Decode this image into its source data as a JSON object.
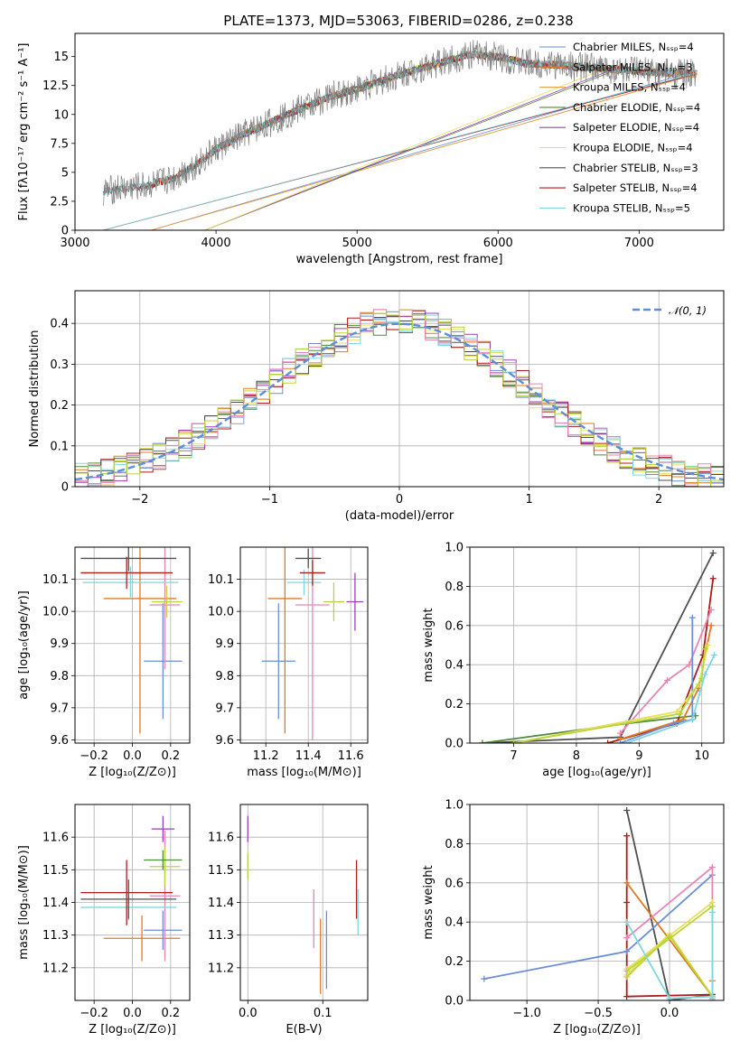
{
  "figure_title": "PLATE=1373, MJD=53063, FIBERID=0286, z=0.238",
  "colors": {
    "Chabrier MILES": "#6a8ed8",
    "Salpeter MILES": "#e07a20",
    "Kroupa MILES": "#e6a24a",
    "Chabrier ELODIE": "#4f8a3a",
    "Salpeter ELODIE": "#9b3fb5",
    "Kroupa ELODIE": "#e8e05a",
    "Chabrier STELIB": "#505050",
    "Salpeter STELIB": "#b01a1a",
    "Kroupa STELIB": "#7fd6e0",
    "extra_pink": "#e884b8",
    "extra_lime": "#b8d63a"
  },
  "chart_data": [
    {
      "type": "line",
      "title": "PLATE=1373, MJD=53063, FIBERID=0286, z=0.238",
      "xlabel": "wavelength [Angstrom, rest frame]",
      "ylabel": "Flux [fλ10⁻¹⁷ erg cm⁻² s⁻¹ A⁻¹]",
      "xlim": [
        3000,
        7600
      ],
      "ylim": [
        0,
        17
      ],
      "xticks": [
        3000,
        4000,
        5000,
        6000,
        7000
      ],
      "yticks": [
        0.0,
        2.5,
        5.0,
        7.5,
        10.0,
        12.5,
        15.0
      ],
      "legend_position": "upper-right",
      "series": [
        {
          "name": "Chabrier MILES, Nₛₛₚ=4"
        },
        {
          "name": "Salpeter MILES, Nₛₛₚ=3"
        },
        {
          "name": "Kroupa MILES, Nₛₛₚ=4"
        },
        {
          "name": "Chabrier ELODIE, Nₛₛₚ=4"
        },
        {
          "name": "Salpeter ELODIE, Nₛₛₚ=4"
        },
        {
          "name": "Kroupa ELODIE, Nₛₛₚ=4"
        },
        {
          "name": "Chabrier STELIB, Nₛₛₚ=3"
        },
        {
          "name": "Salpeter STELIB, Nₛₛₚ=4"
        },
        {
          "name": "Kroupa STELIB, Nₛₛₚ=5"
        }
      ],
      "continuum": {
        "x": [
          3200,
          3300,
          3500,
          3700,
          3900,
          4000,
          4200,
          4400,
          4600,
          4800,
          5000,
          5200,
          5400,
          5600,
          5800,
          6000,
          6200,
          6400,
          6600,
          6800,
          7000,
          7200,
          7400
        ],
        "y": [
          3.3,
          3.6,
          3.8,
          4.5,
          6.0,
          7.0,
          8.3,
          9.4,
          10.5,
          11.5,
          12.2,
          13.0,
          13.8,
          14.5,
          15.2,
          15.0,
          14.4,
          14.3,
          14.1,
          13.9,
          13.7,
          13.6,
          13.5
        ]
      }
    },
    {
      "type": "line",
      "xlabel": "(data-model)/error",
      "ylabel": "Normed distribution",
      "xlim": [
        -2.5,
        2.5
      ],
      "ylim": [
        0,
        0.48
      ],
      "xticks": [
        -2,
        -1,
        0,
        1,
        2
      ],
      "yticks": [
        0.0,
        0.1,
        0.2,
        0.3,
        0.4
      ],
      "legend": [
        {
          "label": "𝒩(0, 1)",
          "style": "dashed"
        }
      ],
      "legend_position": "upper-right",
      "grid": true,
      "bin_width": 0.1,
      "histogram_profile": [
        0.02,
        0.03,
        0.05,
        0.07,
        0.1,
        0.14,
        0.18,
        0.24,
        0.29,
        0.33,
        0.37,
        0.4,
        0.41,
        0.4,
        0.37,
        0.33,
        0.28,
        0.23,
        0.18,
        0.13,
        0.09,
        0.06,
        0.04,
        0.03,
        0.02
      ]
    },
    {
      "type": "scatter",
      "xlabel": "Z [log₁₀(Z/Z⊙)]",
      "ylabel": "age  [log₁₀(age/yr)]",
      "xlim": [
        -0.3,
        0.3
      ],
      "ylim": [
        9.59,
        10.2
      ],
      "xticks": [
        "-0.2",
        "0.0",
        "0.2"
      ],
      "yticks": [
        "9.6",
        "9.7",
        "9.8",
        "9.9",
        "10.0",
        "10.1"
      ],
      "points": [
        {
          "x": 0.16,
          "y": 9.845,
          "xerr": 0.1,
          "yerr": 0.18,
          "c": "Chabrier MILES"
        },
        {
          "x": 0.04,
          "y": 10.04,
          "xerr": 0.19,
          "yerr": 0.42,
          "c": "Salpeter MILES"
        },
        {
          "x": 0.17,
          "y": 10.02,
          "xerr": 0.08,
          "yerr": 0.2,
          "c": "extra_pink"
        },
        {
          "x": 0.18,
          "y": 10.03,
          "xerr": 0.08,
          "yerr": 0.05,
          "c": "extra_lime"
        },
        {
          "x": -0.01,
          "y": 10.09,
          "xerr": 0.25,
          "yerr": 0.05,
          "c": "Kroupa STELIB"
        },
        {
          "x": -0.03,
          "y": 10.12,
          "xerr": 0.24,
          "yerr": 0.05,
          "c": "Salpeter STELIB"
        },
        {
          "x": -0.02,
          "y": 10.165,
          "xerr": 0.25,
          "yerr": 0.04,
          "c": "Chabrier STELIB"
        }
      ]
    },
    {
      "type": "scatter",
      "xlabel": "mass [log₁₀(M/M⊙)]",
      "xlim": [
        11.08,
        11.68
      ],
      "ylim": [
        9.59,
        10.2
      ],
      "xticks": [
        "11.2",
        "11.4",
        "11.6"
      ],
      "yticks": [
        "9.6",
        "9.7",
        "9.8",
        "9.9",
        "10.0",
        "10.1"
      ],
      "points": [
        {
          "x": 11.26,
          "y": 9.845,
          "xerr": 0.08,
          "yerr": 0.18,
          "c": "Chabrier MILES"
        },
        {
          "x": 11.29,
          "y": 10.04,
          "xerr": 0.08,
          "yerr": 0.42,
          "c": "Salpeter MILES"
        },
        {
          "x": 11.42,
          "y": 10.02,
          "xerr": 0.08,
          "yerr": 0.42,
          "c": "extra_pink"
        },
        {
          "x": 11.52,
          "y": 10.03,
          "xerr": 0.05,
          "yerr": 0.06,
          "c": "extra_lime"
        },
        {
          "x": 11.62,
          "y": 10.03,
          "xerr": 0.04,
          "yerr": 0.09,
          "c": "Salpeter ELODIE"
        },
        {
          "x": 11.38,
          "y": 10.09,
          "xerr": 0.08,
          "yerr": 0.04,
          "c": "Kroupa STELIB"
        },
        {
          "x": 11.42,
          "y": 10.12,
          "xerr": 0.06,
          "yerr": 0.04,
          "c": "Salpeter STELIB"
        },
        {
          "x": 11.4,
          "y": 10.165,
          "xerr": 0.06,
          "yerr": 0.03,
          "c": "Chabrier STELIB"
        }
      ]
    },
    {
      "type": "line",
      "xlabel": "age  [log₁₀(age/yr)]",
      "ylabel": "mass weight",
      "xlim": [
        6.3,
        10.35
      ],
      "ylim": [
        0,
        1.0
      ],
      "xticks": [
        "7",
        "8",
        "9",
        "10"
      ],
      "yticks": [
        "0.0",
        "0.2",
        "0.4",
        "0.6",
        "0.8",
        "1.0"
      ],
      "series": [
        {
          "c": "Chabrier STELIB",
          "x": [
            6.5,
            8.7,
            10.18
          ],
          "y": [
            0.0,
            0.03,
            0.97
          ]
        },
        {
          "c": "Chabrier ELODIE",
          "x": [
            6.5,
            8.8,
            9.9
          ],
          "y": [
            0.0,
            0.1,
            0.14
          ]
        },
        {
          "c": "Salpeter STELIB",
          "x": [
            8.5,
            9.6,
            10.02,
            10.18
          ],
          "y": [
            0.0,
            0.1,
            0.45,
            0.84
          ]
        },
        {
          "c": "extra_pink",
          "x": [
            8.7,
            9.45,
            9.8,
            10.15
          ],
          "y": [
            0.05,
            0.32,
            0.4,
            0.68
          ]
        },
        {
          "c": "Salpeter MILES",
          "x": [
            8.7,
            9.7,
            9.95,
            10.15
          ],
          "y": [
            0.02,
            0.12,
            0.28,
            0.6
          ]
        },
        {
          "c": "Chabrier MILES",
          "x": [
            8.7,
            9.55,
            9.85,
            9.85
          ],
          "y": [
            0.0,
            0.1,
            0.12,
            0.64
          ]
        },
        {
          "c": "Kroupa ELODIE",
          "x": [
            7.0,
            9.6,
            9.95,
            10.1
          ],
          "y": [
            0.0,
            0.16,
            0.3,
            0.5
          ]
        },
        {
          "c": "extra_lime",
          "x": [
            7.0,
            9.65,
            10.0,
            10.05
          ],
          "y": [
            0.0,
            0.15,
            0.33,
            0.48
          ]
        },
        {
          "c": "Kroupa STELIB",
          "x": [
            8.8,
            9.85,
            10.05,
            10.2
          ],
          "y": [
            0.0,
            0.12,
            0.35,
            0.45
          ]
        }
      ]
    },
    {
      "type": "scatter",
      "xlabel": "Z [log₁₀(Z/Z⊙)]",
      "ylabel": "mass [log₁₀(M/M⊙)]",
      "xlim": [
        -0.3,
        0.3
      ],
      "ylim": [
        11.1,
        11.7
      ],
      "xticks": [
        "-0.2",
        "0.0",
        "0.2"
      ],
      "yticks": [
        "11.2",
        "11.3",
        "11.4",
        "11.5",
        "11.6"
      ],
      "points": [
        {
          "x": 0.16,
          "y": 11.315,
          "xerr": 0.1,
          "yerr": 0.06,
          "c": "Chabrier MILES"
        },
        {
          "x": 0.05,
          "y": 11.29,
          "xerr": 0.2,
          "yerr": 0.07,
          "c": "Salpeter MILES"
        },
        {
          "x": 0.17,
          "y": 11.42,
          "xerr": 0.08,
          "yerr": 0.2,
          "c": "extra_pink"
        },
        {
          "x": 0.17,
          "y": 11.51,
          "xerr": 0.08,
          "yerr": 0.06,
          "c": "extra_lime"
        },
        {
          "x": 0.16,
          "y": 11.53,
          "xerr": 0.1,
          "yerr": 0.03,
          "c": "Chabrier ELODIE"
        },
        {
          "x": 0.16,
          "y": 11.625,
          "xerr": 0.06,
          "yerr": 0.04,
          "c": "Salpeter ELODIE"
        },
        {
          "x": -0.02,
          "y": 11.385,
          "xerr": 0.25,
          "yerr": 0.04,
          "c": "Kroupa STELIB"
        },
        {
          "x": -0.03,
          "y": 11.43,
          "xerr": 0.24,
          "yerr": 0.1,
          "c": "Salpeter STELIB"
        },
        {
          "x": -0.02,
          "y": 11.41,
          "xerr": 0.25,
          "yerr": 0.06,
          "c": "Chabrier STELIB"
        }
      ]
    },
    {
      "type": "scatter",
      "xlabel": "E(B-V)",
      "xlim": [
        -0.01,
        0.16
      ],
      "ylim": [
        11.1,
        11.7
      ],
      "xticks": [
        "0.0",
        "0.1"
      ],
      "yticks": [
        "11.2",
        "11.3",
        "11.4",
        "11.5",
        "11.6"
      ],
      "points": [
        {
          "x": 0.0,
          "y": 11.625,
          "yerr": 0.04,
          "c": "Salpeter ELODIE"
        },
        {
          "x": 0.0,
          "y": 11.51,
          "yerr": 0.04,
          "c": "extra_lime"
        },
        {
          "x": 0.088,
          "y": 11.35,
          "yerr": 0.09,
          "c": "extra_pink"
        },
        {
          "x": 0.097,
          "y": 11.235,
          "yerr": 0.115,
          "c": "Salpeter MILES"
        },
        {
          "x": 0.105,
          "y": 11.255,
          "yerr": 0.12,
          "c": "Chabrier MILES"
        },
        {
          "x": 0.145,
          "y": 11.44,
          "yerr": 0.09,
          "c": "Salpeter STELIB"
        },
        {
          "x": 0.147,
          "y": 11.37,
          "yerr": 0.07,
          "c": "Kroupa STELIB"
        }
      ]
    },
    {
      "type": "line",
      "xlabel": "Z [log₁₀(Z/Z⊙)]",
      "ylabel": "mass weight",
      "xlim": [
        -1.4,
        0.38
      ],
      "ylim": [
        0,
        1.0
      ],
      "xticks": [
        "-1.0",
        "-0.5",
        "0.0"
      ],
      "yticks": [
        "0.0",
        "0.2",
        "0.4",
        "0.6",
        "0.8",
        "1.0"
      ],
      "series": [
        {
          "c": "Chabrier STELIB",
          "x": [
            -0.3,
            0.0,
            0.3,
            0.3
          ],
          "y": [
            0.97,
            0.0,
            0.03,
            0.0
          ]
        },
        {
          "c": "Salpeter STELIB",
          "x": [
            -0.3,
            -0.3,
            -0.3,
            0.3
          ],
          "y": [
            0.84,
            0.5,
            0.02,
            0.03
          ]
        },
        {
          "c": "Salpeter MILES",
          "x": [
            -0.3,
            0.3,
            0.3
          ],
          "y": [
            0.6,
            0.02,
            0.1
          ]
        },
        {
          "c": "Chabrier MILES",
          "x": [
            -1.3,
            -0.3,
            0.3
          ],
          "y": [
            0.11,
            0.25,
            0.64
          ]
        },
        {
          "c": "extra_pink",
          "x": [
            -0.3,
            0.3,
            0.3
          ],
          "y": [
            0.32,
            0.68,
            0.01
          ]
        },
        {
          "c": "Kroupa ELODIE",
          "x": [
            -0.3,
            0.3,
            0.3,
            0.0,
            -0.3
          ],
          "y": [
            0.16,
            0.5,
            0.02,
            0.34,
            0.13
          ]
        },
        {
          "c": "extra_lime",
          "x": [
            -0.3,
            0.3,
            0.3,
            0.0,
            -0.3
          ],
          "y": [
            0.15,
            0.48,
            0.02,
            0.33,
            0.12
          ]
        },
        {
          "c": "Kroupa STELIB",
          "x": [
            -0.3,
            0.0,
            0.3,
            0.3
          ],
          "y": [
            0.4,
            0.01,
            0.02,
            0.45
          ]
        }
      ]
    }
  ]
}
